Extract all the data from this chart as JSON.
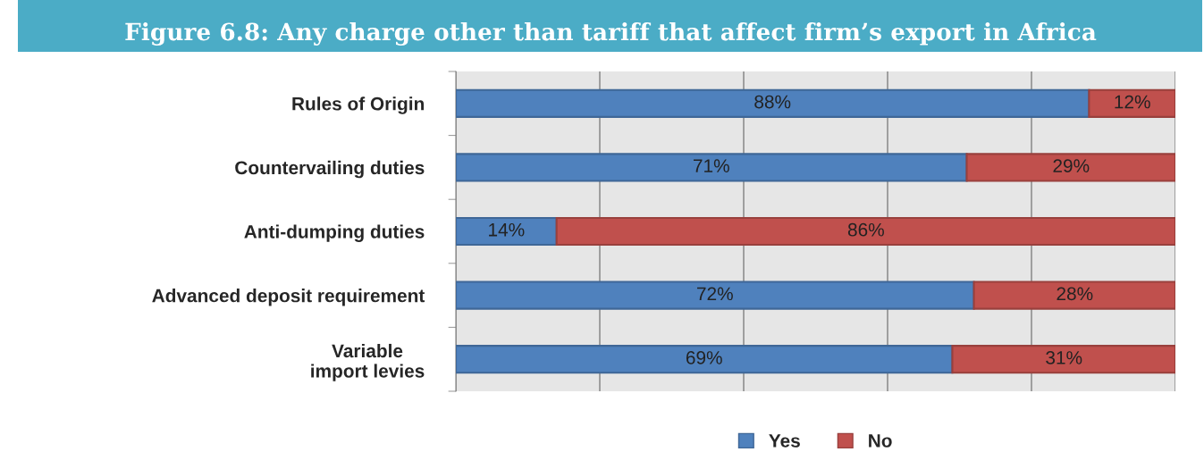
{
  "chart_data": {
    "type": "bar",
    "orientation": "horizontal",
    "stacked": true,
    "title": "Figure 6.8: Any charge other than tariff that affect firm’s export in Africa",
    "categories": [
      "Rules of Origin",
      "Countervailing duties",
      "Anti-dumping duties",
      "Advanced deposit requirement",
      "Variable\nimport levies"
    ],
    "series": [
      {
        "name": "Yes",
        "color": "#4f81bd",
        "values": [
          88,
          71,
          14,
          72,
          69
        ],
        "value_labels": [
          "88%",
          "71%",
          "14%",
          "72%",
          "69%"
        ]
      },
      {
        "name": "No",
        "color": "#c0504d",
        "values": [
          12,
          29,
          86,
          28,
          31
        ],
        "value_labels": [
          "12%",
          "29%",
          "86%",
          "28%",
          "31%"
        ]
      }
    ],
    "xlim": [
      0,
      100
    ],
    "xticks": [
      {
        "value": 0,
        "label": null
      },
      {
        "value": 20,
        "label": null
      },
      {
        "value": 40,
        "label": null
      },
      {
        "value": 60,
        "label": null
      },
      {
        "value": 80,
        "label": null
      },
      {
        "value": 100,
        "label": null
      }
    ],
    "tick_labels": "y",
    "grid": "x",
    "legend": "bottom"
  }
}
